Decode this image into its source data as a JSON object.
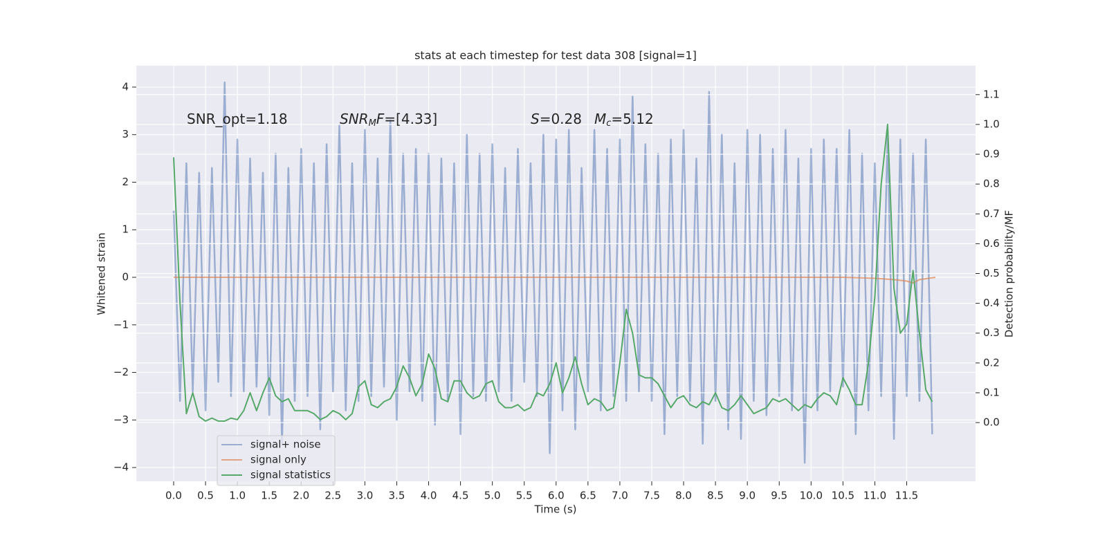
{
  "chart_data": {
    "type": "line",
    "title": "stats at each timestep for test data 308 [signal=1]",
    "xlabel": "Time (s)",
    "ylabel": "Whitened strain",
    "y2label": "Detection probability/MF",
    "x": [
      0,
      0.1,
      0.2,
      0.3,
      0.4,
      0.5,
      0.6,
      0.7,
      0.8,
      0.9,
      1,
      1.1,
      1.2,
      1.3,
      1.4,
      1.5,
      1.6,
      1.7,
      1.8,
      1.9,
      2,
      2.1,
      2.2,
      2.3,
      2.4,
      2.5,
      2.6,
      2.7,
      2.8,
      2.9,
      3,
      3.1,
      3.2,
      3.3,
      3.4,
      3.5,
      3.6,
      3.7,
      3.8,
      3.9,
      4,
      4.1,
      4.2,
      4.3,
      4.4,
      4.5,
      4.6,
      4.7,
      4.8,
      4.9,
      5,
      5.1,
      5.2,
      5.3,
      5.4,
      5.5,
      5.6,
      5.7,
      5.8,
      5.9,
      6,
      6.1,
      6.2,
      6.3,
      6.4,
      6.5,
      6.6,
      6.7,
      6.8,
      6.9,
      7,
      7.1,
      7.2,
      7.3,
      7.4,
      7.5,
      7.6,
      7.7,
      7.8,
      7.9,
      8,
      8.1,
      8.2,
      8.3,
      8.4,
      8.5,
      8.6,
      8.7,
      8.8,
      8.9,
      9,
      9.1,
      9.2,
      9.3,
      9.4,
      9.5,
      9.6,
      9.7,
      9.8,
      9.9,
      10,
      10.1,
      10.2,
      10.3,
      10.4,
      10.5,
      10.6,
      10.7,
      10.8,
      10.9,
      11,
      11.1,
      11.2,
      11.3,
      11.4,
      11.5,
      11.6,
      11.7,
      11.8,
      11.9
    ],
    "xlim": [
      -0.586,
      12.58
    ],
    "ylim": [
      -4.29,
      4.45
    ],
    "y2lim": [
      -0.197,
      1.197
    ],
    "grid": true,
    "legend": "lower left",
    "xticks": [
      {
        "value": 0,
        "label": "0.0"
      },
      {
        "value": 0.5,
        "label": "0.5"
      },
      {
        "value": 1,
        "label": "1.0"
      },
      {
        "value": 1.5,
        "label": "1.5"
      },
      {
        "value": 2,
        "label": "2.0"
      },
      {
        "value": 2.5,
        "label": "2.5"
      },
      {
        "value": 3,
        "label": "3.0"
      },
      {
        "value": 3.5,
        "label": "3.5"
      },
      {
        "value": 4,
        "label": "4.0"
      },
      {
        "value": 4.5,
        "label": "4.5"
      },
      {
        "value": 5,
        "label": "5.0"
      },
      {
        "value": 5.5,
        "label": "5.5"
      },
      {
        "value": 6,
        "label": "6.0"
      },
      {
        "value": 6.5,
        "label": "6.5"
      },
      {
        "value": 7,
        "label": "7.0"
      },
      {
        "value": 7.5,
        "label": "7.5"
      },
      {
        "value": 8,
        "label": "8.0"
      },
      {
        "value": 8.5,
        "label": "8.5"
      },
      {
        "value": 9,
        "label": "9.0"
      },
      {
        "value": 9.5,
        "label": "9.5"
      },
      {
        "value": 10,
        "label": "10.0"
      },
      {
        "value": 10.5,
        "label": "10.5"
      },
      {
        "value": 11,
        "label": "11.0"
      },
      {
        "value": 11.5,
        "label": "11.5"
      }
    ],
    "yticks": [
      {
        "value": -4,
        "label": "−4"
      },
      {
        "value": -3,
        "label": "−3"
      },
      {
        "value": -2,
        "label": "−2"
      },
      {
        "value": -1,
        "label": "−1"
      },
      0,
      1,
      2,
      3,
      4
    ],
    "y2ticks": [
      {
        "value": 0,
        "label": "0.0"
      },
      0.1,
      0.2,
      0.3,
      0.4,
      0.5,
      0.6,
      0.7,
      0.8,
      0.9,
      {
        "value": 1,
        "label": "1.0"
      },
      1.1
    ],
    "annotations": [
      {
        "parts": [
          {
            "text": "SNR_opt=1.18"
          }
        ]
      },
      {
        "parts": [
          {
            "text": "SNR",
            "style": "italic"
          },
          {
            "text": "M",
            "style": "sub"
          },
          {
            "text": "F",
            "style": "italic"
          },
          {
            "text": "=[4.33]"
          }
        ]
      },
      {
        "parts": [
          {
            "text": "S",
            "style": "italic"
          },
          {
            "text": "=0.28"
          }
        ]
      },
      {
        "parts": [
          {
            "text": "M",
            "style": "italic"
          },
          {
            "text": "c",
            "style": "sub"
          },
          {
            "text": "=5.12"
          }
        ]
      }
    ],
    "series": [
      {
        "name": "signal+ noise",
        "color": "#4c72b0",
        "alpha": 0.5,
        "values": [
          1.4,
          -2.6,
          2.4,
          -2.4,
          2.2,
          -2.8,
          2.3,
          -2.2,
          4.1,
          -2.5,
          2.9,
          -2.4,
          2.5,
          -2.3,
          2.2,
          -2.9,
          2.6,
          -3.5,
          2.3,
          -2.6,
          2.7,
          -2.5,
          2.4,
          -3.2,
          2.8,
          -2.4,
          3.2,
          -2.8,
          2.4,
          -2.6,
          3.1,
          -2.5,
          2.5,
          -2.3,
          3.3,
          -3.0,
          2.6,
          -2.4,
          2.7,
          -2.6,
          2.6,
          -3.1,
          2.5,
          -2.6,
          2.4,
          -3.3,
          3.0,
          -2.5,
          2.6,
          -2.6,
          2.8,
          -2.4,
          2.3,
          -2.6,
          2.7,
          -2.2,
          2.4,
          -2.5,
          3.0,
          -3.7,
          2.9,
          -2.8,
          3.1,
          -3.2,
          2.3,
          -2.4,
          3.1,
          -2.8,
          2.7,
          -2.5,
          2.9,
          -2.6,
          3.8,
          -2.4,
          2.8,
          -2.6,
          2.6,
          -3.3,
          2.9,
          -2.5,
          3.1,
          -2.6,
          2.5,
          -3.5,
          3.9,
          -2.6,
          3.0,
          -3.2,
          2.4,
          -3.4,
          3.1,
          -2.6,
          3.0,
          -2.9,
          2.7,
          -2.5,
          3.1,
          -2.8,
          2.5,
          -3.9,
          2.7,
          -2.8,
          2.9,
          -2.4,
          2.7,
          -2.3,
          3.1,
          -3.3,
          2.6,
          -2.8,
          2.4,
          -2.5,
          3.0,
          -3.4,
          2.9,
          -2.5,
          2.6,
          -2.6,
          2.9,
          -3.3
        ]
      },
      {
        "name": "signal only",
        "color": "#dd8452",
        "alpha": 0.7,
        "x": [
          0,
          10.5,
          11.0,
          11.3,
          11.5,
          11.6,
          11.7,
          11.95
        ],
        "values": [
          0,
          0,
          -0.02,
          -0.05,
          -0.08,
          -0.12,
          -0.05,
          0
        ]
      },
      {
        "name": "signal statistics",
        "color": "#55a868",
        "axis": "y2",
        "values": [
          0.89,
          0.4,
          0.03,
          0.1,
          0.02,
          0.005,
          0.015,
          0.005,
          0.005,
          0.015,
          0.01,
          0.04,
          0.1,
          0.04,
          0.1,
          0.15,
          0.09,
          0.07,
          0.08,
          0.04,
          0.04,
          0.04,
          0.03,
          0.01,
          0.02,
          0.04,
          0.03,
          0.01,
          0.03,
          0.12,
          0.14,
          0.06,
          0.05,
          0.07,
          0.08,
          0.12,
          0.19,
          0.15,
          0.09,
          0.13,
          0.23,
          0.18,
          0.08,
          0.07,
          0.14,
          0.14,
          0.1,
          0.08,
          0.09,
          0.13,
          0.14,
          0.07,
          0.05,
          0.05,
          0.06,
          0.04,
          0.05,
          0.1,
          0.09,
          0.13,
          0.2,
          0.1,
          0.15,
          0.22,
          0.13,
          0.06,
          0.08,
          0.07,
          0.04,
          0.05,
          0.2,
          0.38,
          0.3,
          0.16,
          0.15,
          0.15,
          0.13,
          0.09,
          0.05,
          0.08,
          0.09,
          0.06,
          0.05,
          0.07,
          0.06,
          0.1,
          0.05,
          0.04,
          0.06,
          0.09,
          0.06,
          0.03,
          0.04,
          0.05,
          0.08,
          0.07,
          0.08,
          0.06,
          0.04,
          0.06,
          0.05,
          0.08,
          0.1,
          0.09,
          0.06,
          0.15,
          0.11,
          0.06,
          0.06,
          0.2,
          0.42,
          0.8,
          1.0,
          0.45,
          0.3,
          0.33,
          0.51,
          0.3,
          0.11,
          0.07
        ]
      }
    ]
  }
}
